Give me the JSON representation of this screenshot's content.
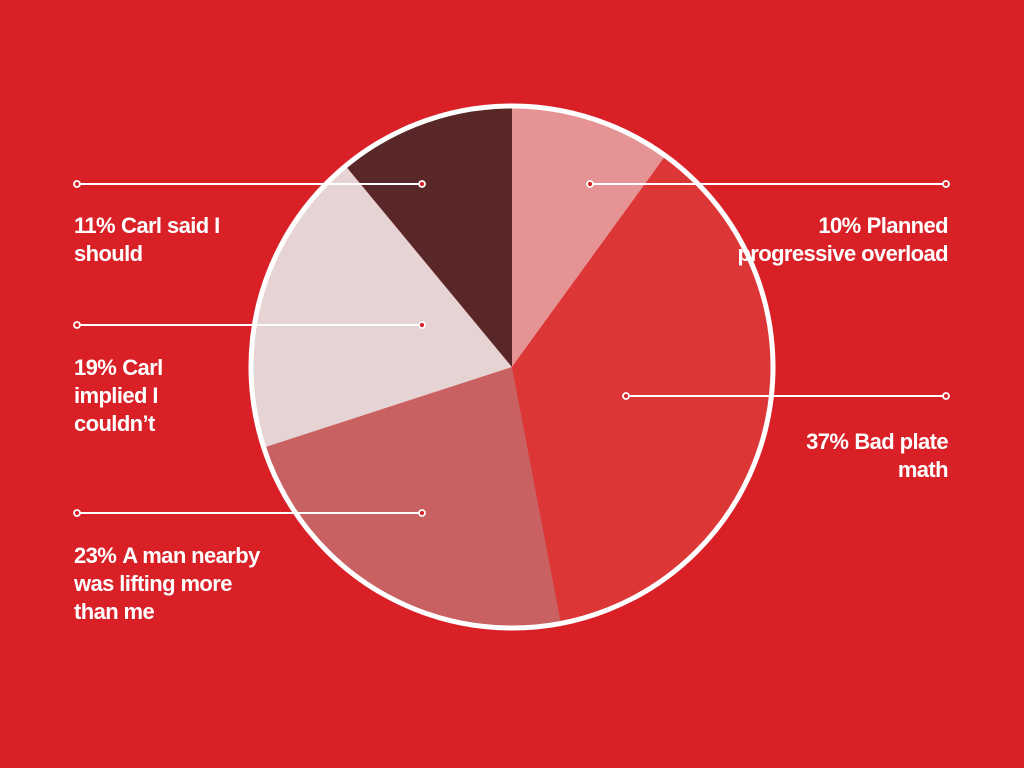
{
  "colors": {
    "background": "#d92027",
    "outline": "#ffffff",
    "leader": "#ffffff"
  },
  "chart_data": {
    "type": "pie",
    "title": "",
    "start": "top",
    "direction": "clockwise",
    "slices": [
      {
        "label": "Planned progressive overload",
        "value": 10,
        "percent_text": "10%",
        "color": "#e59394"
      },
      {
        "label": "Bad plate math",
        "value": 37,
        "percent_text": "37%",
        "color": "#dc3637"
      },
      {
        "label": "A man nearby was lifting more than me",
        "value": 23,
        "percent_text": "23%",
        "color": "#c96061"
      },
      {
        "label": "Carl implied I couldn’t",
        "value": 19,
        "percent_text": "19%",
        "color": "#e6d4d4"
      },
      {
        "label": "Carl said I should",
        "value": 11,
        "percent_text": "11%",
        "color": "#5a2729"
      }
    ]
  }
}
